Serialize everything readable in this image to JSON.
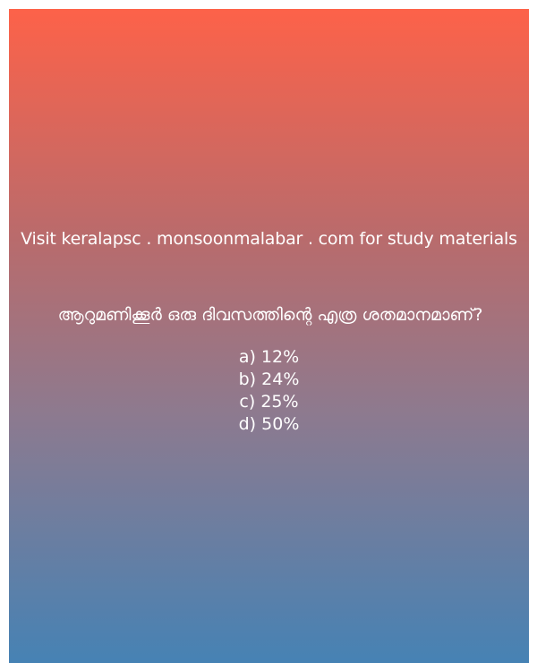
{
  "promo_text": "Visit keralapsc . monsoonmalabar . com for study materials",
  "question": "ആറുമണിക്കൂർ ഒരു ദിവസത്തിന്റെ എത്ര ശതമാനമാണ്?",
  "options": [
    "a) 12%",
    "b) 24%",
    "c) 25%",
    "d) 50%"
  ],
  "colors": {
    "gradient_top": "#fd6249",
    "gradient_bottom": "#4682b4",
    "text": "#ffffff"
  }
}
